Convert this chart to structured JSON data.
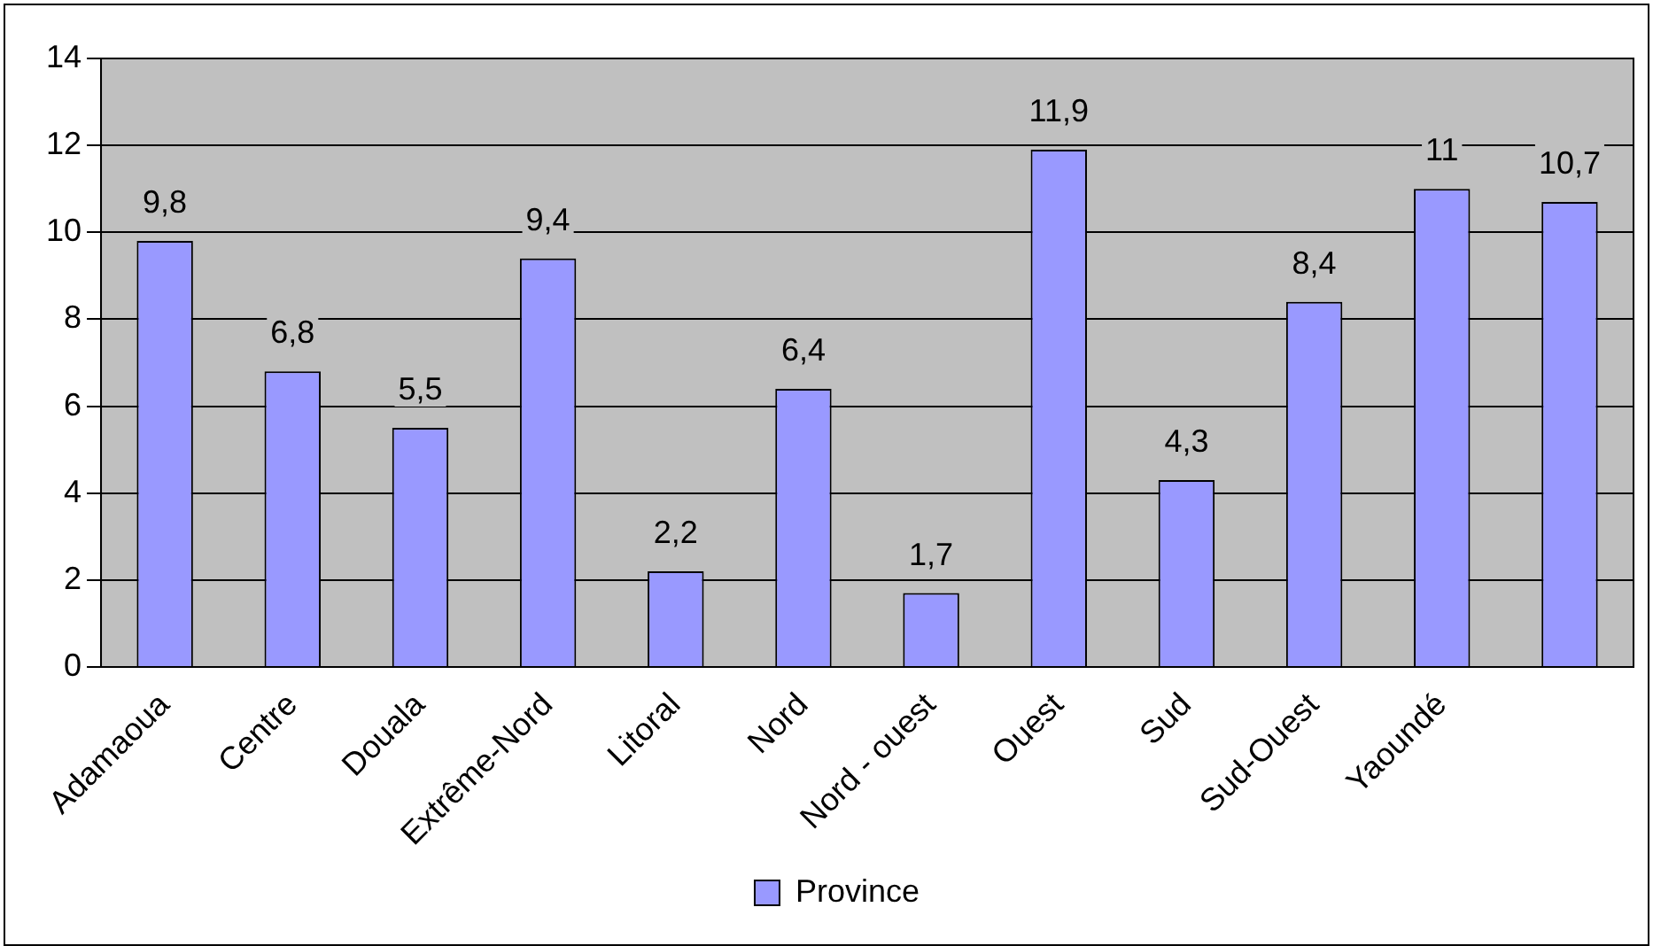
{
  "chart_data": {
    "type": "bar",
    "categories": [
      "Adamaoua",
      "Centre",
      "Douala",
      "Extrême-Nord",
      "Litoral",
      "Nord",
      "Nord - ouest",
      "Ouest",
      "Sud",
      "Sud-Ouest",
      "Yaoundé",
      null
    ],
    "series": [
      {
        "name": "Province",
        "color": "#9999ff",
        "values": [
          9.8,
          6.8,
          5.5,
          9.4,
          2.2,
          6.4,
          1.7,
          11.9,
          4.3,
          8.4,
          11,
          10.7
        ]
      }
    ],
    "value_labels": [
      "9,8",
      "6,8",
      "5,5",
      "9,4",
      "2,2",
      "6,4",
      "1,7",
      "11,9",
      "4,3",
      "8,4",
      "11",
      "10,7"
    ],
    "ylim": [
      0,
      14
    ],
    "yticks": [
      0,
      2,
      4,
      6,
      8,
      10,
      12,
      14
    ],
    "grid": "y",
    "legend": "bottom"
  }
}
